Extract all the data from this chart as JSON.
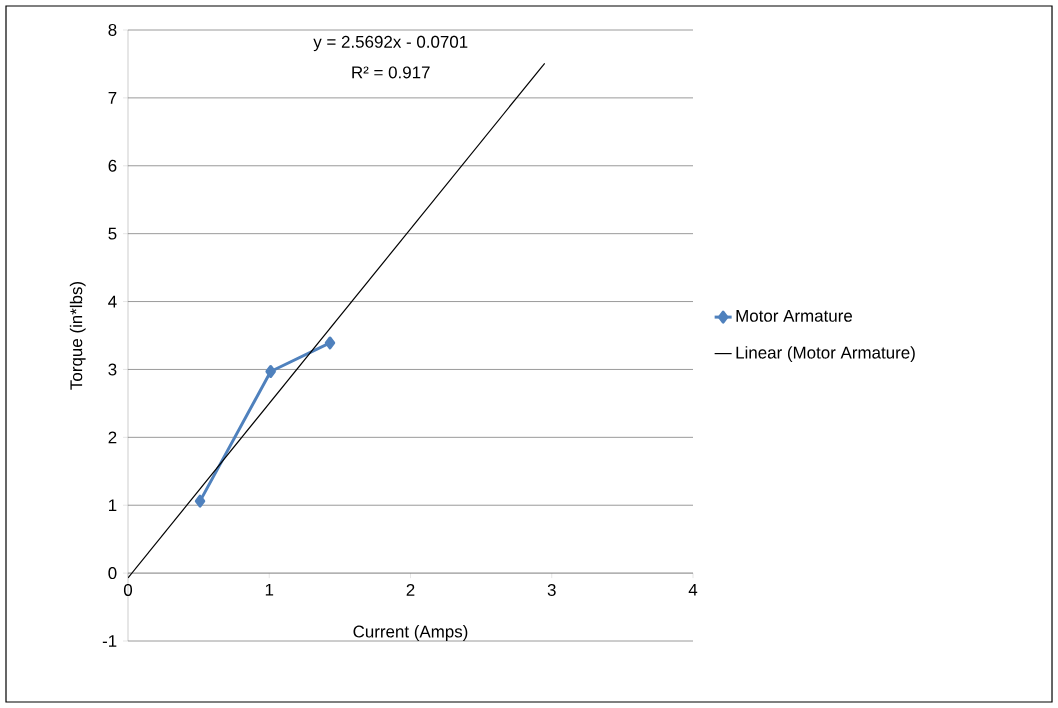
{
  "chart_data": {
    "type": "line",
    "xlabel": "Current (Amps)",
    "ylabel": "Torque (in*lbs)",
    "annotations": [
      "y = 2.5692x - 0.0701",
      "R² = 0.917"
    ],
    "series": [
      {
        "name": "Motor Armature",
        "color": "#4f81bd",
        "x": [
          0.51,
          1.01,
          1.43
        ],
        "values": [
          1.06,
          2.97,
          3.39
        ],
        "marker": "diamond"
      },
      {
        "name": "Linear (Motor Armature)",
        "color": "#000000",
        "x": [
          0,
          2.95
        ],
        "values": [
          -0.07,
          7.51
        ],
        "marker": "none"
      }
    ],
    "xlim": [
      0,
      4
    ],
    "ylim": [
      -1,
      8
    ],
    "xticks": [
      0,
      1,
      2,
      3,
      4
    ],
    "yticks": [
      -1,
      0,
      1,
      2,
      3,
      4,
      5,
      6,
      7,
      8
    ],
    "grid": "y",
    "legend": "right"
  }
}
